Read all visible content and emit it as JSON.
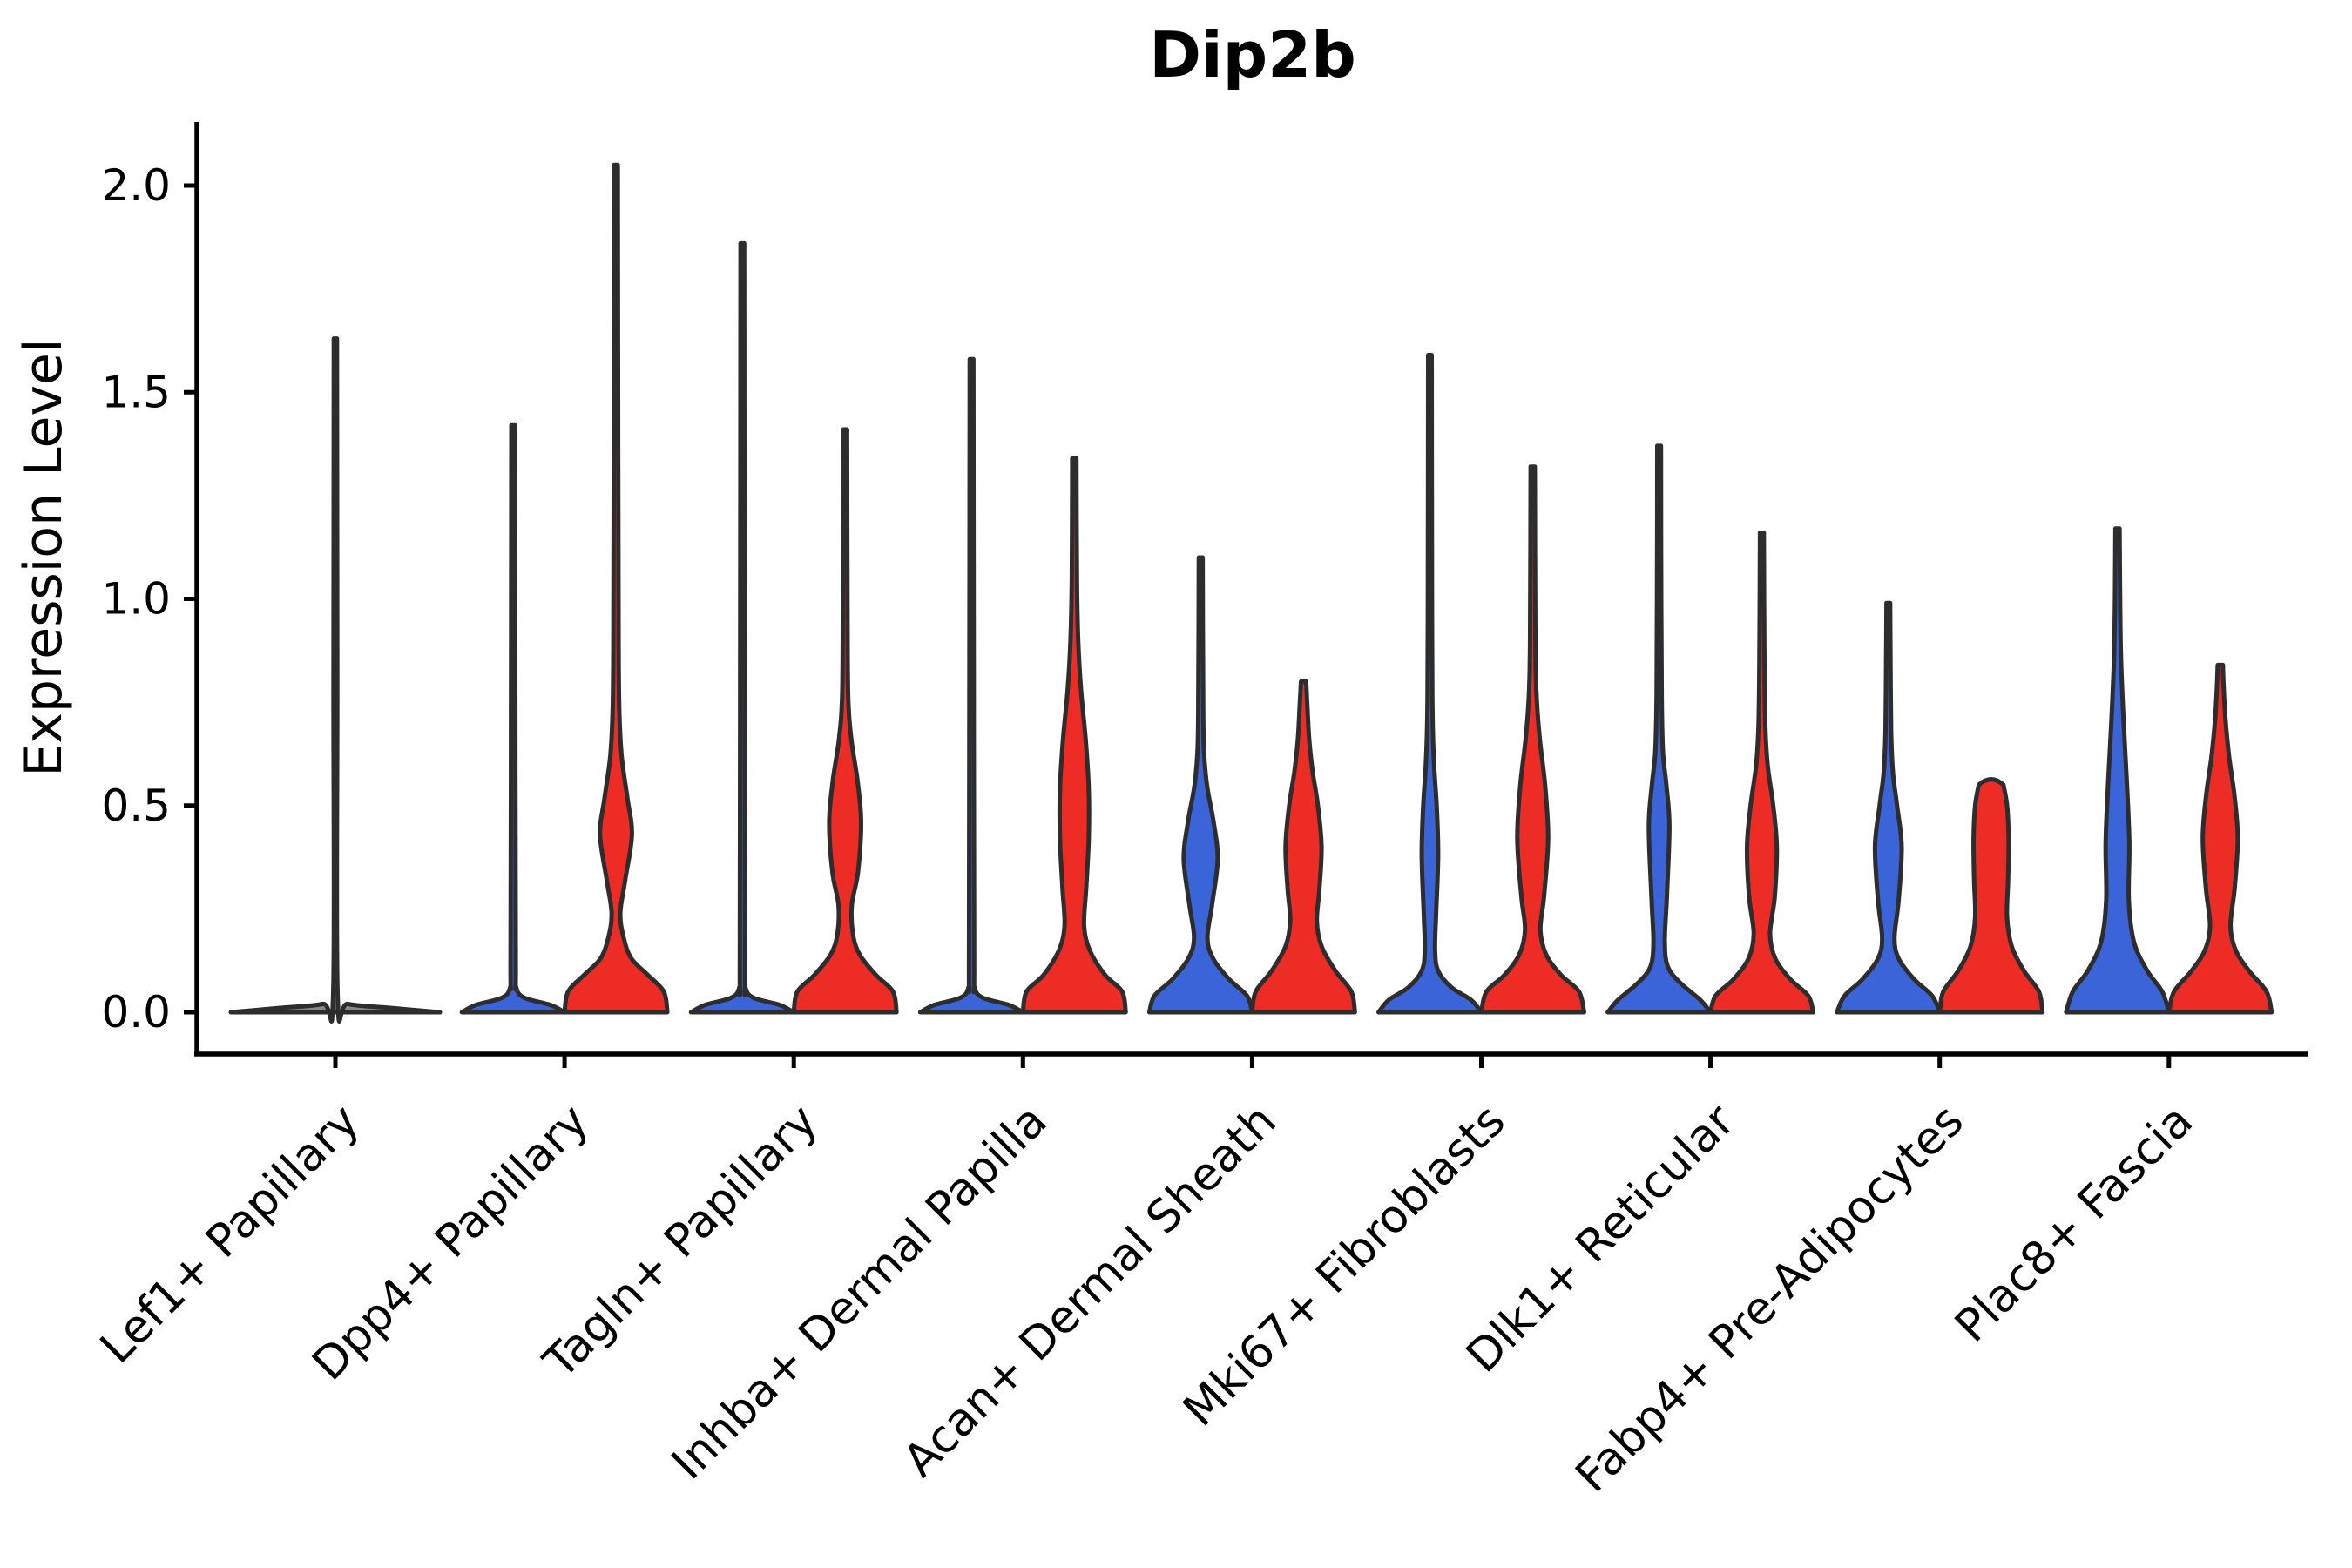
{
  "title": "Dip2b",
  "axes": {
    "ylabel": "Expression Level",
    "ytick_labels": [
      "0.0",
      "0.5",
      "1.0",
      "1.5",
      "2.0"
    ],
    "ytick_values": [
      0.0,
      0.5,
      1.0,
      1.5,
      2.0
    ],
    "ylim": [
      -0.1,
      2.15
    ],
    "grid": false,
    "legend": "none"
  },
  "colors": {
    "blue_fill": "#3a64d8",
    "red_fill": "#ee2c26",
    "single_fill": "#888888",
    "violin_edge": "#2d2d2d",
    "axis": "#000000",
    "background": "#ffffff",
    "text": "#000000"
  },
  "chart_data": {
    "type": "violin",
    "title": "Dip2b",
    "ylabel": "Expression Level",
    "xlabel": "",
    "ylim": [
      -0.1,
      2.15
    ],
    "categories": [
      "Lef1+ Papillary",
      "Dpp4+ Papillary",
      "Tagln+ Papillary",
      "Inhba+ Dermal Papilla",
      "Acan+ Dermal Sheath",
      "Mki67+ Fibroblasts",
      "Dlk1+ Reticular",
      "Fabp4+ Pre-Adipocytes",
      "Plac8+ Fascia"
    ],
    "series_note": "two violins per category: left=blue, right=red; first category is a single collapsed violin",
    "violins": [
      {
        "category": "Lef1+ Papillary",
        "hue": "single",
        "max_expression": 1.63,
        "profile": [
          [
            0,
            1.0
          ],
          [
            0.01,
            0.55
          ],
          [
            0.02,
            0.12
          ],
          [
            0.04,
            0.022
          ],
          [
            0.8,
            0.018
          ],
          [
            1.63,
            0.015
          ]
        ]
      },
      {
        "category": "Dpp4+ Papillary",
        "hue": "blue",
        "max_expression": 1.42,
        "profile": [
          [
            0,
            1.0
          ],
          [
            0.018,
            0.72
          ],
          [
            0.035,
            0.22
          ],
          [
            0.06,
            0.06
          ],
          [
            0.12,
            0.05
          ],
          [
            0.7,
            0.042
          ],
          [
            1.42,
            0.036
          ]
        ]
      },
      {
        "category": "Dpp4+ Papillary",
        "hue": "red",
        "max_expression": 2.05,
        "profile": [
          [
            0,
            1.0
          ],
          [
            0.05,
            0.93
          ],
          [
            0.09,
            0.62
          ],
          [
            0.13,
            0.3
          ],
          [
            0.18,
            0.15
          ],
          [
            0.24,
            0.085
          ],
          [
            0.32,
            0.18
          ],
          [
            0.43,
            0.31
          ],
          [
            0.52,
            0.22
          ],
          [
            0.62,
            0.11
          ],
          [
            0.73,
            0.065
          ],
          [
            0.9,
            0.05
          ],
          [
            1.4,
            0.042
          ],
          [
            2.05,
            0.036
          ]
        ]
      },
      {
        "category": "Tagln+ Papillary",
        "hue": "blue",
        "max_expression": 1.86,
        "profile": [
          [
            0,
            1.0
          ],
          [
            0.018,
            0.72
          ],
          [
            0.035,
            0.22
          ],
          [
            0.06,
            0.06
          ],
          [
            0.12,
            0.05
          ],
          [
            0.9,
            0.042
          ],
          [
            1.86,
            0.036
          ]
        ]
      },
      {
        "category": "Tagln+ Papillary",
        "hue": "red",
        "max_expression": 1.41,
        "profile": [
          [
            0,
            1.0
          ],
          [
            0.05,
            0.93
          ],
          [
            0.09,
            0.6
          ],
          [
            0.14,
            0.28
          ],
          [
            0.19,
            0.15
          ],
          [
            0.26,
            0.13
          ],
          [
            0.34,
            0.25
          ],
          [
            0.46,
            0.31
          ],
          [
            0.56,
            0.24
          ],
          [
            0.66,
            0.12
          ],
          [
            0.76,
            0.06
          ],
          [
            0.95,
            0.045
          ],
          [
            1.41,
            0.038
          ]
        ]
      },
      {
        "category": "Inhba+ Dermal Papilla",
        "hue": "blue",
        "max_expression": 1.58,
        "profile": [
          [
            0,
            1.0
          ],
          [
            0.018,
            0.72
          ],
          [
            0.035,
            0.22
          ],
          [
            0.06,
            0.06
          ],
          [
            0.12,
            0.05
          ],
          [
            0.8,
            0.042
          ],
          [
            1.58,
            0.036
          ]
        ]
      },
      {
        "category": "Inhba+ Dermal Papilla",
        "hue": "red",
        "max_expression": 1.34,
        "profile": [
          [
            0,
            1.0
          ],
          [
            0.05,
            0.93
          ],
          [
            0.09,
            0.6
          ],
          [
            0.15,
            0.3
          ],
          [
            0.21,
            0.19
          ],
          [
            0.3,
            0.23
          ],
          [
            0.42,
            0.28
          ],
          [
            0.54,
            0.28
          ],
          [
            0.66,
            0.22
          ],
          [
            0.78,
            0.13
          ],
          [
            0.9,
            0.075
          ],
          [
            1.05,
            0.05
          ],
          [
            1.34,
            0.04
          ]
        ]
      },
      {
        "category": "Acan+ Dermal Sheath",
        "hue": "blue",
        "max_expression": 1.1,
        "profile": [
          [
            0,
            1.0
          ],
          [
            0.04,
            0.9
          ],
          [
            0.08,
            0.55
          ],
          [
            0.13,
            0.24
          ],
          [
            0.18,
            0.13
          ],
          [
            0.26,
            0.22
          ],
          [
            0.37,
            0.33
          ],
          [
            0.46,
            0.25
          ],
          [
            0.55,
            0.12
          ],
          [
            0.64,
            0.06
          ],
          [
            0.8,
            0.045
          ],
          [
            1.1,
            0.038
          ]
        ]
      },
      {
        "category": "Acan+ Dermal Sheath",
        "hue": "red",
        "max_expression": 0.8,
        "profile": [
          [
            0,
            1.0
          ],
          [
            0.05,
            0.93
          ],
          [
            0.1,
            0.62
          ],
          [
            0.16,
            0.35
          ],
          [
            0.22,
            0.26
          ],
          [
            0.3,
            0.31
          ],
          [
            0.4,
            0.35
          ],
          [
            0.5,
            0.28
          ],
          [
            0.58,
            0.18
          ],
          [
            0.66,
            0.11
          ],
          [
            0.74,
            0.075
          ],
          [
            0.8,
            0.05
          ]
        ]
      },
      {
        "category": "Mki67+ Fibroblasts",
        "hue": "blue",
        "max_expression": 1.59,
        "profile": [
          [
            0,
            1.0
          ],
          [
            0.03,
            0.8
          ],
          [
            0.06,
            0.42
          ],
          [
            0.1,
            0.16
          ],
          [
            0.15,
            0.1
          ],
          [
            0.24,
            0.12
          ],
          [
            0.38,
            0.16
          ],
          [
            0.5,
            0.13
          ],
          [
            0.6,
            0.08
          ],
          [
            0.72,
            0.05
          ],
          [
            0.95,
            0.04
          ],
          [
            1.59,
            0.034
          ]
        ]
      },
      {
        "category": "Mki67+ Fibroblasts",
        "hue": "red",
        "max_expression": 1.32,
        "profile": [
          [
            0,
            1.0
          ],
          [
            0.05,
            0.9
          ],
          [
            0.09,
            0.55
          ],
          [
            0.14,
            0.26
          ],
          [
            0.2,
            0.15
          ],
          [
            0.28,
            0.22
          ],
          [
            0.42,
            0.3
          ],
          [
            0.55,
            0.24
          ],
          [
            0.67,
            0.13
          ],
          [
            0.78,
            0.07
          ],
          [
            0.92,
            0.05
          ],
          [
            1.32,
            0.04
          ]
        ]
      },
      {
        "category": "Dlk1+ Reticular",
        "hue": "blue",
        "max_expression": 1.37,
        "profile": [
          [
            0,
            1.0
          ],
          [
            0.03,
            0.8
          ],
          [
            0.07,
            0.42
          ],
          [
            0.11,
            0.17
          ],
          [
            0.17,
            0.11
          ],
          [
            0.28,
            0.15
          ],
          [
            0.45,
            0.2
          ],
          [
            0.55,
            0.14
          ],
          [
            0.63,
            0.075
          ],
          [
            0.76,
            0.05
          ],
          [
            1.0,
            0.04
          ],
          [
            1.37,
            0.035
          ]
        ]
      },
      {
        "category": "Dlk1+ Reticular",
        "hue": "red",
        "max_expression": 1.16,
        "profile": [
          [
            0,
            1.0
          ],
          [
            0.04,
            0.9
          ],
          [
            0.08,
            0.55
          ],
          [
            0.13,
            0.26
          ],
          [
            0.19,
            0.16
          ],
          [
            0.28,
            0.25
          ],
          [
            0.4,
            0.29
          ],
          [
            0.5,
            0.22
          ],
          [
            0.6,
            0.11
          ],
          [
            0.7,
            0.065
          ],
          [
            0.88,
            0.047
          ],
          [
            1.16,
            0.038
          ]
        ]
      },
      {
        "category": "Fabp4+ Pre-Adipocytes",
        "hue": "blue",
        "max_expression": 0.99,
        "profile": [
          [
            0,
            1.0
          ],
          [
            0.04,
            0.85
          ],
          [
            0.08,
            0.5
          ],
          [
            0.13,
            0.2
          ],
          [
            0.18,
            0.12
          ],
          [
            0.27,
            0.2
          ],
          [
            0.4,
            0.26
          ],
          [
            0.5,
            0.17
          ],
          [
            0.58,
            0.09
          ],
          [
            0.68,
            0.055
          ],
          [
            0.85,
            0.042
          ],
          [
            0.99,
            0.036
          ]
        ]
      },
      {
        "category": "Fabp4+ Pre-Adipocytes",
        "hue": "red",
        "max_expression": 0.55,
        "profile": [
          [
            0,
            1.0
          ],
          [
            0.05,
            0.93
          ],
          [
            0.1,
            0.64
          ],
          [
            0.16,
            0.4
          ],
          [
            0.23,
            0.31
          ],
          [
            0.32,
            0.33
          ],
          [
            0.42,
            0.34
          ],
          [
            0.5,
            0.31
          ],
          [
            0.55,
            0.24
          ]
        ]
      },
      {
        "category": "Plac8+ Fascia",
        "hue": "blue",
        "max_expression": 1.17,
        "profile": [
          [
            0,
            1.0
          ],
          [
            0.05,
            0.87
          ],
          [
            0.1,
            0.58
          ],
          [
            0.17,
            0.32
          ],
          [
            0.27,
            0.22
          ],
          [
            0.41,
            0.23
          ],
          [
            0.56,
            0.18
          ],
          [
            0.7,
            0.12
          ],
          [
            0.85,
            0.07
          ],
          [
            1.0,
            0.05
          ],
          [
            1.17,
            0.04
          ]
        ]
      },
      {
        "category": "Plac8+ Fascia",
        "hue": "red",
        "max_expression": 0.84,
        "profile": [
          [
            0,
            1.0
          ],
          [
            0.05,
            0.9
          ],
          [
            0.1,
            0.56
          ],
          [
            0.15,
            0.3
          ],
          [
            0.21,
            0.2
          ],
          [
            0.3,
            0.28
          ],
          [
            0.42,
            0.34
          ],
          [
            0.52,
            0.28
          ],
          [
            0.62,
            0.17
          ],
          [
            0.71,
            0.1
          ],
          [
            0.79,
            0.065
          ],
          [
            0.84,
            0.05
          ]
        ]
      }
    ]
  }
}
